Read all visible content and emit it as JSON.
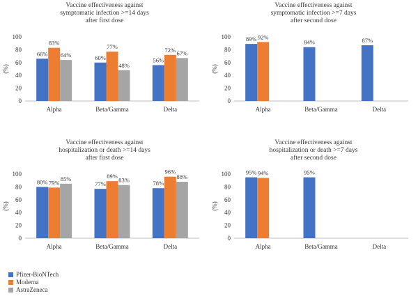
{
  "chart_data": [
    {
      "type": "bar",
      "title_lines": [
        "Vaccine effectiveness against",
        "symptomatic infection >=14 days",
        "after first dose"
      ],
      "ylabel": "(%)",
      "ylim": [
        0,
        100
      ],
      "yticks": [
        0,
        20,
        40,
        60,
        80,
        100
      ],
      "categories": [
        "Alpha",
        "Beta/Gamma",
        "Delta"
      ],
      "series": [
        {
          "name": "Pfizer-BioNTech",
          "values": [
            66,
            60,
            56
          ]
        },
        {
          "name": "Moderna",
          "values": [
            83,
            77,
            72
          ]
        },
        {
          "name": "AstraZeneca",
          "values": [
            64,
            48,
            67
          ]
        }
      ]
    },
    {
      "type": "bar",
      "title_lines": [
        "Vaccine effectiveness against",
        "symptomatic infection >=7 days",
        "after second dose"
      ],
      "ylabel": "(%)",
      "ylim": [
        0,
        100
      ],
      "yticks": [
        0,
        20,
        40,
        60,
        80,
        100
      ],
      "categories": [
        "Alpha",
        "Beta/Gamma",
        "Delta"
      ],
      "series": [
        {
          "name": "Pfizer-BioNTech",
          "values": [
            89,
            84,
            87
          ]
        },
        {
          "name": "Moderna",
          "values": [
            92,
            null,
            null
          ]
        },
        {
          "name": "AstraZeneca",
          "values": [
            null,
            null,
            null
          ]
        }
      ]
    },
    {
      "type": "bar",
      "title_lines": [
        "Vaccine effectiveness against",
        "hospitalization or death >=14 days",
        "after first dose"
      ],
      "ylabel": "(%)",
      "ylim": [
        0,
        100
      ],
      "yticks": [
        0,
        20,
        40,
        60,
        80,
        100
      ],
      "categories": [
        "Alpha",
        "Beta/Gamma",
        "Delta"
      ],
      "series": [
        {
          "name": "Pfizer-BioNTech",
          "values": [
            80,
            77,
            78
          ]
        },
        {
          "name": "Moderna",
          "values": [
            79,
            89,
            96
          ]
        },
        {
          "name": "AstraZeneca",
          "values": [
            85,
            83,
            88
          ]
        }
      ]
    },
    {
      "type": "bar",
      "title_lines": [
        "Vaccine effectiveness against",
        "hospitalization or death >=7 days",
        "after second dose"
      ],
      "ylabel": "(%)",
      "ylim": [
        0,
        100
      ],
      "yticks": [
        0,
        20,
        40,
        60,
        80,
        100
      ],
      "categories": [
        "Alpha",
        "Beta/Gamma",
        "Delta"
      ],
      "series": [
        {
          "name": "Pfizer-BioNTech",
          "values": [
            95,
            95,
            null
          ]
        },
        {
          "name": "Moderna",
          "values": [
            94,
            null,
            null
          ]
        },
        {
          "name": "AstraZeneca",
          "values": [
            null,
            null,
            null
          ]
        }
      ]
    }
  ],
  "legend": [
    {
      "label": "Pfizer-BioNTech",
      "color": "#4472C4"
    },
    {
      "label": "Moderna",
      "color": "#ED7D31"
    },
    {
      "label": "AstraZeneca",
      "color": "#A5A5A5"
    }
  ],
  "colors": {
    "series": [
      "#4472C4",
      "#ED7D31",
      "#A5A5A5"
    ],
    "axis": "#bfbfbf",
    "text": "#333333"
  }
}
